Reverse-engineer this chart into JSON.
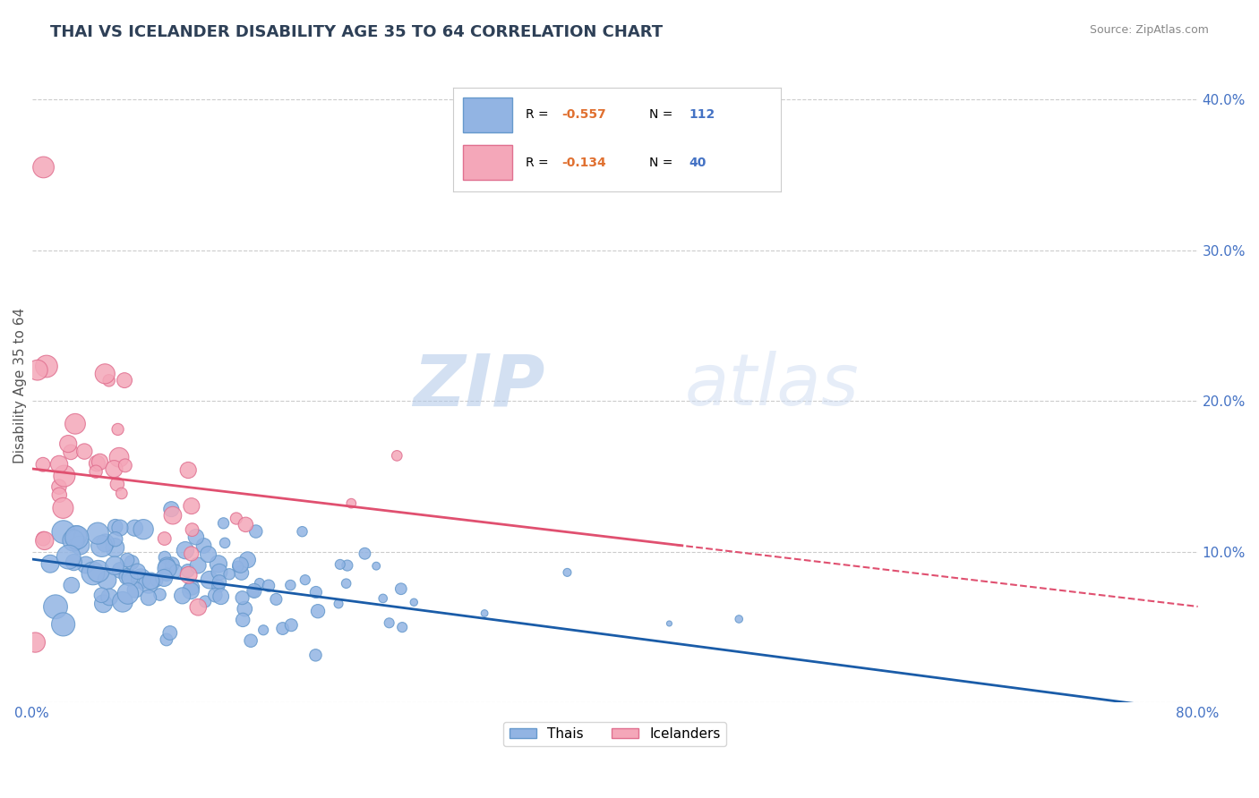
{
  "title": "THAI VS ICELANDER DISABILITY AGE 35 TO 64 CORRELATION CHART",
  "source": "Source: ZipAtlas.com",
  "ylabel": "Disability Age 35 to 64",
  "xlim": [
    0.0,
    0.8
  ],
  "ylim": [
    0.0,
    0.42
  ],
  "grid_color": "#cccccc",
  "background_color": "#ffffff",
  "title_color": "#2E4057",
  "axis_color": "#4472C4",
  "thai_color": "#92b4e3",
  "thai_edge_color": "#6699cc",
  "icelander_color": "#f4a7b9",
  "icelander_edge_color": "#e07090",
  "thai_line_color": "#1a5ca8",
  "icelander_line_color": "#e05070",
  "legend_R1": "-0.557",
  "legend_N1": "112",
  "legend_R2": "-0.134",
  "legend_N2": "40",
  "watermark_zip": "ZIP",
  "watermark_atlas": "atlas"
}
